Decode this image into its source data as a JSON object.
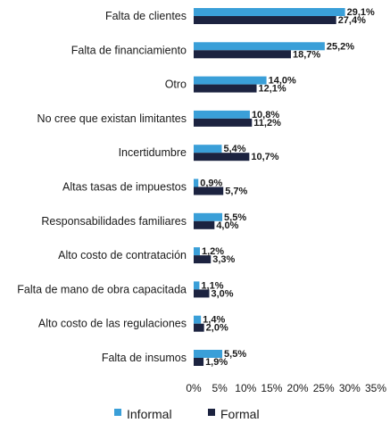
{
  "chart_data": {
    "type": "bar",
    "orientation": "horizontal",
    "categories": [
      "Falta de clientes",
      "Falta de financiamiento",
      "Otro",
      "No cree que existan limitantes",
      "Incertidumbre",
      "Altas tasas de impuestos",
      "Responsabilidades familiares",
      "Alto costo de contratación",
      "Falta de mano de obra capacitada",
      "Alto costo de las regulaciones",
      "Falta de insumos"
    ],
    "series": [
      {
        "name": "Informal",
        "color": "#3a9fd8",
        "values": [
          29.1,
          25.2,
          14.0,
          10.8,
          5.4,
          0.9,
          5.5,
          1.2,
          1.1,
          1.4,
          5.5
        ],
        "labels": [
          "29,1%",
          "25,2%",
          "14,0%",
          "10,8%",
          "5,4%",
          "0,9%",
          "5,5%",
          "1,2%",
          "1,1%",
          "1,4%",
          "5,5%"
        ]
      },
      {
        "name": "Formal",
        "color": "#1c2340",
        "values": [
          27.4,
          18.7,
          12.1,
          11.2,
          10.7,
          5.7,
          4.0,
          3.3,
          3.0,
          2.0,
          1.9
        ],
        "labels": [
          "27,4%",
          "18,7%",
          "12,1%",
          "11,2%",
          "10,7%",
          "5,7%",
          "4,0%",
          "3,3%",
          "3,0%",
          "2,0%",
          "1,9%"
        ]
      }
    ],
    "xlim": [
      0,
      35
    ],
    "xticks": [
      "0%",
      "5%",
      "10%",
      "15%",
      "20%",
      "25%",
      "30%",
      "35%"
    ],
    "grid": false,
    "legend_position": "bottom"
  }
}
